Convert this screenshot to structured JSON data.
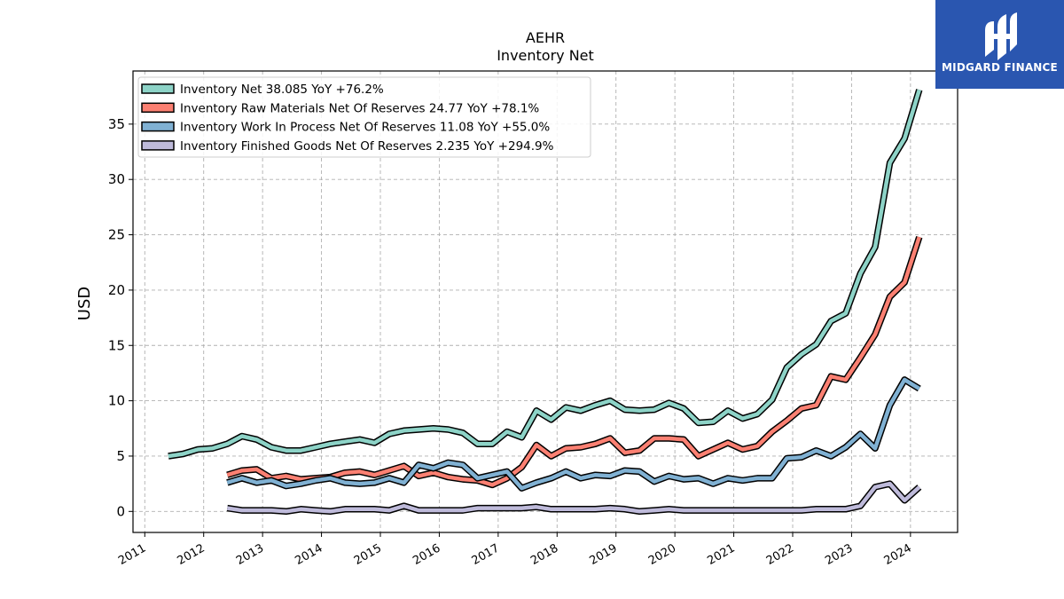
{
  "brand": {
    "name": "MIDGARD FINANCE",
    "color": "#2a56b0"
  },
  "chart_data": {
    "type": "line",
    "title": "AEHR",
    "subtitle": "Inventory Net",
    "xlabel": "",
    "ylabel": "USD",
    "ylim": [
      -1.9,
      39.8
    ],
    "yticks": [
      0,
      5,
      10,
      15,
      20,
      25,
      30,
      35
    ],
    "xlim": [
      2010.8,
      2024.8
    ],
    "xticks": [
      2011,
      2012,
      2013,
      2014,
      2015,
      2016,
      2017,
      2018,
      2019,
      2020,
      2021,
      2022,
      2023,
      2024
    ],
    "xtick_labels": [
      "2011",
      "2012",
      "2013",
      "2014",
      "2015",
      "2016",
      "2017",
      "2018",
      "2019",
      "2020",
      "2021",
      "2022",
      "2023",
      "2024"
    ],
    "grid": true,
    "legend_position": "top-left",
    "series": [
      {
        "name": "Inventory Net  38.085 YoY +76.2%",
        "color": "#8dd3c7",
        "x": [
          2011.4,
          2011.65,
          2011.9,
          2012.15,
          2012.4,
          2012.65,
          2012.9,
          2013.15,
          2013.4,
          2013.65,
          2013.9,
          2014.15,
          2014.4,
          2014.65,
          2014.9,
          2015.15,
          2015.4,
          2015.65,
          2015.9,
          2016.15,
          2016.4,
          2016.65,
          2016.9,
          2017.15,
          2017.4,
          2017.65,
          2017.9,
          2018.15,
          2018.4,
          2018.65,
          2018.9,
          2019.15,
          2019.4,
          2019.65,
          2019.9,
          2020.15,
          2020.4,
          2020.65,
          2020.9,
          2021.15,
          2021.4,
          2021.65,
          2021.9,
          2022.15,
          2022.4,
          2022.65,
          2022.9,
          2023.15,
          2023.4,
          2023.65,
          2023.9,
          2024.15
        ],
        "values": [
          5.0,
          5.2,
          5.6,
          5.7,
          6.1,
          6.8,
          6.5,
          5.8,
          5.5,
          5.5,
          5.8,
          6.1,
          6.3,
          6.5,
          6.2,
          7.0,
          7.3,
          7.4,
          7.5,
          7.4,
          7.1,
          6.1,
          6.1,
          7.2,
          6.7,
          9.1,
          8.3,
          9.4,
          9.1,
          9.6,
          10.0,
          9.2,
          9.1,
          9.2,
          9.8,
          9.3,
          8.0,
          8.1,
          9.1,
          8.4,
          8.8,
          10.1,
          13.0,
          14.2,
          15.1,
          17.2,
          17.9,
          21.5,
          23.9,
          31.5,
          33.7,
          38.1
        ]
      },
      {
        "name": "Inventory Raw Materials Net Of Reserves  24.77 YoY +78.1%",
        "color": "#fb8072",
        "x": [
          2012.4,
          2012.65,
          2012.9,
          2013.15,
          2013.4,
          2013.65,
          2013.9,
          2014.15,
          2014.4,
          2014.65,
          2014.9,
          2015.15,
          2015.4,
          2015.65,
          2015.9,
          2016.15,
          2016.4,
          2016.65,
          2016.9,
          2017.15,
          2017.4,
          2017.65,
          2017.9,
          2018.15,
          2018.4,
          2018.65,
          2018.9,
          2019.15,
          2019.4,
          2019.65,
          2019.9,
          2020.15,
          2020.4,
          2020.65,
          2020.9,
          2021.15,
          2021.4,
          2021.65,
          2021.9,
          2022.15,
          2022.4,
          2022.65,
          2022.9,
          2023.15,
          2023.4,
          2023.65,
          2023.9,
          2024.15
        ],
        "values": [
          3.3,
          3.7,
          3.8,
          3.0,
          3.2,
          2.9,
          3.0,
          3.1,
          3.5,
          3.6,
          3.3,
          3.7,
          4.1,
          3.2,
          3.5,
          3.1,
          2.9,
          2.8,
          2.4,
          3.0,
          4.0,
          6.0,
          5.0,
          5.7,
          5.8,
          6.1,
          6.6,
          5.3,
          5.5,
          6.6,
          6.6,
          6.5,
          5.0,
          5.6,
          6.2,
          5.6,
          5.9,
          7.2,
          8.2,
          9.3,
          9.6,
          12.2,
          11.9,
          13.9,
          16.0,
          19.4,
          20.7,
          24.8
        ]
      },
      {
        "name": "Inventory Work In Process Net Of Reserves  11.08 YoY +55.0%",
        "color": "#80b1d3",
        "x": [
          2012.4,
          2012.65,
          2012.9,
          2013.15,
          2013.4,
          2013.65,
          2013.9,
          2014.15,
          2014.4,
          2014.65,
          2014.9,
          2015.15,
          2015.4,
          2015.65,
          2015.9,
          2016.15,
          2016.4,
          2016.65,
          2016.9,
          2017.15,
          2017.4,
          2017.65,
          2017.9,
          2018.15,
          2018.4,
          2018.65,
          2018.9,
          2019.15,
          2019.4,
          2019.65,
          2019.9,
          2020.15,
          2020.4,
          2020.65,
          2020.9,
          2021.15,
          2021.4,
          2021.65,
          2021.9,
          2022.15,
          2022.4,
          2022.65,
          2022.9,
          2023.15,
          2023.4,
          2023.65,
          2023.9,
          2024.15
        ],
        "values": [
          2.6,
          3.0,
          2.6,
          2.8,
          2.3,
          2.5,
          2.8,
          3.0,
          2.6,
          2.5,
          2.6,
          3.0,
          2.6,
          4.2,
          3.9,
          4.4,
          4.2,
          3.0,
          3.3,
          3.6,
          2.1,
          2.6,
          3.0,
          3.6,
          3.0,
          3.3,
          3.2,
          3.7,
          3.6,
          2.7,
          3.2,
          2.9,
          3.0,
          2.5,
          3.0,
          2.8,
          3.0,
          3.0,
          4.8,
          4.9,
          5.5,
          5.0,
          5.8,
          7.0,
          5.7,
          9.6,
          11.9,
          11.1
        ]
      },
      {
        "name": "Inventory Finished Goods Net Of Reserves  2.235 YoY +294.9%",
        "color": "#bebada",
        "x": [
          2012.4,
          2012.65,
          2012.9,
          2013.15,
          2013.4,
          2013.65,
          2013.9,
          2014.15,
          2014.4,
          2014.65,
          2014.9,
          2015.15,
          2015.4,
          2015.65,
          2015.9,
          2016.15,
          2016.4,
          2016.65,
          2016.9,
          2017.15,
          2017.4,
          2017.65,
          2017.9,
          2018.15,
          2018.4,
          2018.65,
          2018.9,
          2019.15,
          2019.4,
          2019.65,
          2019.9,
          2020.15,
          2020.4,
          2020.65,
          2020.9,
          2021.15,
          2021.4,
          2021.65,
          2021.9,
          2022.15,
          2022.4,
          2022.65,
          2022.9,
          2023.15,
          2023.4,
          2023.65,
          2023.9,
          2024.15
        ],
        "values": [
          0.3,
          0.1,
          0.1,
          0.1,
          0.0,
          0.2,
          0.1,
          0.0,
          0.2,
          0.2,
          0.2,
          0.1,
          0.5,
          0.1,
          0.1,
          0.1,
          0.1,
          0.3,
          0.3,
          0.3,
          0.3,
          0.4,
          0.2,
          0.2,
          0.2,
          0.2,
          0.3,
          0.2,
          0.0,
          0.1,
          0.2,
          0.1,
          0.1,
          0.1,
          0.1,
          0.1,
          0.1,
          0.1,
          0.1,
          0.1,
          0.2,
          0.2,
          0.2,
          0.5,
          2.2,
          2.5,
          1.0,
          2.2
        ]
      }
    ]
  }
}
